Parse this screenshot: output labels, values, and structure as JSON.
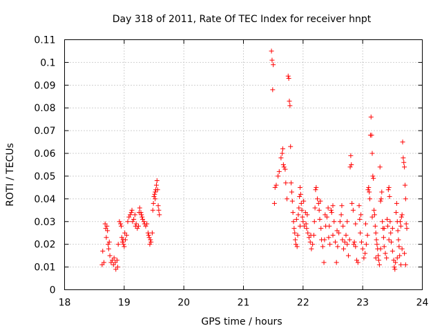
{
  "chart_data": {
    "type": "scatter",
    "title": "Day 318 of 2011, Rate Of TEC Index for receiver hnpt",
    "xlabel": "GPS time / hours",
    "ylabel": "ROTI / TECUs",
    "xlim": [
      18,
      24
    ],
    "ylim": [
      0,
      0.11
    ],
    "x_ticks": [
      "18",
      "19",
      "20",
      "21",
      "22",
      "23",
      "24"
    ],
    "y_ticks": [
      "0",
      "0.01",
      "0.02",
      "0.03",
      "0.04",
      "0.05",
      "0.06",
      "0.07",
      "0.08",
      "0.09",
      "0.1",
      "0.11"
    ],
    "grid": true,
    "legend": "none",
    "marker": "plus",
    "color": "#ff0000",
    "series": [
      {
        "points": [
          [
            18.63,
            0.011
          ],
          [
            18.64,
            0.017
          ],
          [
            18.66,
            0.012
          ],
          [
            18.68,
            0.029
          ],
          [
            18.69,
            0.027
          ],
          [
            18.7,
            0.023
          ],
          [
            18.71,
            0.028
          ],
          [
            18.72,
            0.026
          ],
          [
            18.73,
            0.02
          ],
          [
            18.74,
            0.018
          ],
          [
            18.75,
            0.021
          ],
          [
            18.76,
            0.015
          ],
          [
            18.78,
            0.012
          ],
          [
            18.8,
            0.013
          ],
          [
            18.82,
            0.011
          ],
          [
            18.83,
            0.014
          ],
          [
            18.85,
            0.012
          ],
          [
            18.86,
            0.009
          ],
          [
            18.88,
            0.013
          ],
          [
            18.89,
            0.01
          ],
          [
            18.9,
            0.02
          ],
          [
            18.92,
            0.03
          ],
          [
            18.94,
            0.029
          ],
          [
            18.95,
            0.028
          ],
          [
            18.96,
            0.023
          ],
          [
            18.97,
            0.021
          ],
          [
            18.98,
            0.022
          ],
          [
            18.99,
            0.02
          ],
          [
            19.0,
            0.019
          ],
          [
            19.01,
            0.025
          ],
          [
            19.02,
            0.022
          ],
          [
            19.04,
            0.024
          ],
          [
            19.06,
            0.03
          ],
          [
            19.08,
            0.032
          ],
          [
            19.1,
            0.033
          ],
          [
            19.12,
            0.034
          ],
          [
            19.13,
            0.035
          ],
          [
            19.14,
            0.03
          ],
          [
            19.16,
            0.031
          ],
          [
            19.18,
            0.033
          ],
          [
            19.19,
            0.028
          ],
          [
            19.2,
            0.029
          ],
          [
            19.22,
            0.027
          ],
          [
            19.24,
            0.028
          ],
          [
            19.25,
            0.034
          ],
          [
            19.26,
            0.036
          ],
          [
            19.28,
            0.034
          ],
          [
            19.29,
            0.033
          ],
          [
            19.3,
            0.032
          ],
          [
            19.31,
            0.031
          ],
          [
            19.33,
            0.03
          ],
          [
            19.34,
            0.029
          ],
          [
            19.36,
            0.028
          ],
          [
            19.38,
            0.029
          ],
          [
            19.4,
            0.025
          ],
          [
            19.41,
            0.024
          ],
          [
            19.42,
            0.023
          ],
          [
            19.43,
            0.02
          ],
          [
            19.44,
            0.022
          ],
          [
            19.45,
            0.021
          ],
          [
            19.47,
            0.025
          ],
          [
            19.48,
            0.035
          ],
          [
            19.49,
            0.038
          ],
          [
            19.5,
            0.041
          ],
          [
            19.51,
            0.042
          ],
          [
            19.52,
            0.043
          ],
          [
            19.53,
            0.044
          ],
          [
            19.54,
            0.046
          ],
          [
            19.55,
            0.048
          ],
          [
            19.56,
            0.044
          ],
          [
            19.57,
            0.037
          ],
          [
            19.58,
            0.035
          ],
          [
            19.59,
            0.033
          ],
          [
            19.52,
            0.04
          ],
          [
            21.47,
            0.105
          ],
          [
            21.48,
            0.101
          ],
          [
            21.5,
            0.099
          ],
          [
            21.49,
            0.088
          ],
          [
            21.52,
            0.038
          ],
          [
            21.53,
            0.045
          ],
          [
            21.55,
            0.046
          ],
          [
            21.58,
            0.05
          ],
          [
            21.6,
            0.052
          ],
          [
            21.63,
            0.058
          ],
          [
            21.65,
            0.06
          ],
          [
            21.66,
            0.062
          ],
          [
            21.67,
            0.055
          ],
          [
            21.68,
            0.054
          ],
          [
            21.7,
            0.053
          ],
          [
            21.71,
            0.047
          ],
          [
            21.73,
            0.04
          ],
          [
            21.75,
            0.094
          ],
          [
            21.76,
            0.093
          ],
          [
            21.77,
            0.083
          ],
          [
            21.78,
            0.081
          ],
          [
            21.79,
            0.063
          ],
          [
            21.8,
            0.047
          ],
          [
            21.81,
            0.043
          ],
          [
            21.82,
            0.039
          ],
          [
            21.83,
            0.034
          ],
          [
            21.84,
            0.03
          ],
          [
            21.85,
            0.027
          ],
          [
            21.86,
            0.025
          ],
          [
            21.87,
            0.022
          ],
          [
            21.88,
            0.02
          ],
          [
            21.9,
            0.019
          ],
          [
            21.91,
            0.024
          ],
          [
            21.92,
            0.033
          ],
          [
            21.93,
            0.036
          ],
          [
            21.94,
            0.041
          ],
          [
            21.95,
            0.045
          ],
          [
            21.96,
            0.042
          ],
          [
            21.97,
            0.038
          ],
          [
            21.98,
            0.035
          ],
          [
            21.99,
            0.032
          ],
          [
            22.0,
            0.03
          ],
          [
            22.02,
            0.028
          ],
          [
            22.04,
            0.034
          ],
          [
            22.05,
            0.029
          ],
          [
            22.06,
            0.027
          ],
          [
            22.08,
            0.025
          ],
          [
            22.1,
            0.023
          ],
          [
            22.12,
            0.021
          ],
          [
            22.14,
            0.018
          ],
          [
            22.16,
            0.02
          ],
          [
            22.18,
            0.024
          ],
          [
            22.19,
            0.03
          ],
          [
            22.2,
            0.036
          ],
          [
            22.22,
            0.045
          ],
          [
            22.24,
            0.04
          ],
          [
            22.26,
            0.038
          ],
          [
            22.27,
            0.035
          ],
          [
            22.28,
            0.031
          ],
          [
            22.3,
            0.027
          ],
          [
            22.31,
            0.022
          ],
          [
            22.33,
            0.019
          ],
          [
            22.35,
            0.012
          ],
          [
            22.36,
            0.022
          ],
          [
            22.38,
            0.028
          ],
          [
            22.4,
            0.032
          ],
          [
            22.42,
            0.036
          ],
          [
            22.43,
            0.023
          ],
          [
            22.45,
            0.02
          ],
          [
            22.47,
            0.035
          ],
          [
            22.48,
            0.034
          ],
          [
            22.5,
            0.037
          ],
          [
            22.52,
            0.03
          ],
          [
            22.54,
            0.021
          ],
          [
            22.56,
            0.012
          ],
          [
            22.58,
            0.019
          ],
          [
            22.6,
            0.025
          ],
          [
            22.62,
            0.03
          ],
          [
            22.64,
            0.033
          ],
          [
            22.65,
            0.037
          ],
          [
            22.67,
            0.028
          ],
          [
            22.68,
            0.018
          ],
          [
            22.7,
            0.021
          ],
          [
            22.72,
            0.024
          ],
          [
            22.74,
            0.02
          ],
          [
            22.76,
            0.015
          ],
          [
            22.78,
            0.022
          ],
          [
            22.79,
            0.054
          ],
          [
            22.8,
            0.059
          ],
          [
            22.81,
            0.055
          ],
          [
            22.82,
            0.038
          ],
          [
            22.84,
            0.035
          ],
          [
            22.85,
            0.02
          ],
          [
            22.86,
            0.021
          ],
          [
            22.88,
            0.019
          ],
          [
            22.9,
            0.013
          ],
          [
            22.92,
            0.012
          ],
          [
            22.94,
            0.037
          ],
          [
            22.95,
            0.031
          ],
          [
            22.96,
            0.025
          ],
          [
            22.98,
            0.021
          ],
          [
            23.0,
            0.018
          ],
          [
            23.02,
            0.014
          ],
          [
            23.04,
            0.016
          ],
          [
            23.06,
            0.02
          ],
          [
            23.08,
            0.024
          ],
          [
            23.09,
            0.044
          ],
          [
            23.1,
            0.045
          ],
          [
            23.11,
            0.043
          ],
          [
            23.12,
            0.04
          ],
          [
            23.13,
            0.068
          ],
          [
            23.14,
            0.076
          ],
          [
            23.15,
            0.068
          ],
          [
            23.16,
            0.06
          ],
          [
            23.17,
            0.05
          ],
          [
            23.18,
            0.049
          ],
          [
            23.19,
            0.035
          ],
          [
            23.2,
            0.033
          ],
          [
            23.21,
            0.028
          ],
          [
            23.22,
            0.025
          ],
          [
            23.23,
            0.022
          ],
          [
            23.24,
            0.02
          ],
          [
            23.25,
            0.018
          ],
          [
            23.26,
            0.015
          ],
          [
            23.27,
            0.013
          ],
          [
            23.28,
            0.011
          ],
          [
            23.29,
            0.054
          ],
          [
            23.3,
            0.039
          ],
          [
            23.31,
            0.04
          ],
          [
            23.32,
            0.043
          ],
          [
            23.33,
            0.03
          ],
          [
            23.34,
            0.027
          ],
          [
            23.35,
            0.023
          ],
          [
            23.36,
            0.019
          ],
          [
            23.38,
            0.016
          ],
          [
            23.4,
            0.014
          ],
          [
            23.41,
            0.031
          ],
          [
            23.42,
            0.028
          ],
          [
            23.43,
            0.044
          ],
          [
            23.44,
            0.045
          ],
          [
            23.45,
            0.041
          ],
          [
            23.46,
            0.03
          ],
          [
            23.47,
            0.025
          ],
          [
            23.48,
            0.021
          ],
          [
            23.5,
            0.017
          ],
          [
            23.52,
            0.013
          ],
          [
            23.53,
            0.01
          ],
          [
            23.54,
            0.009
          ],
          [
            23.55,
            0.012
          ],
          [
            23.56,
            0.034
          ],
          [
            23.57,
            0.038
          ],
          [
            23.58,
            0.03
          ],
          [
            23.59,
            0.026
          ],
          [
            23.6,
            0.022
          ],
          [
            23.61,
            0.019
          ],
          [
            23.62,
            0.015
          ],
          [
            23.63,
            0.03
          ],
          [
            23.64,
            0.028
          ],
          [
            23.65,
            0.032
          ],
          [
            23.66,
            0.033
          ],
          [
            23.67,
            0.065
          ],
          [
            23.68,
            0.058
          ],
          [
            23.69,
            0.056
          ],
          [
            23.7,
            0.054
          ],
          [
            23.71,
            0.046
          ],
          [
            23.72,
            0.04
          ],
          [
            23.73,
            0.029
          ],
          [
            23.74,
            0.027
          ],
          [
            23.7,
            0.016
          ],
          [
            23.72,
            0.011
          ],
          [
            23.66,
            0.018
          ],
          [
            23.64,
            0.011
          ],
          [
            23.58,
            0.014
          ],
          [
            23.5,
            0.027
          ],
          [
            23.44,
            0.022
          ],
          [
            23.36,
            0.027
          ],
          [
            23.3,
            0.018
          ],
          [
            23.22,
            0.014
          ],
          [
            23.16,
            0.032
          ],
          [
            23.05,
            0.029
          ],
          [
            22.97,
            0.033
          ],
          [
            22.88,
            0.029
          ],
          [
            22.74,
            0.03
          ],
          [
            22.66,
            0.022
          ],
          [
            22.57,
            0.026
          ],
          [
            22.5,
            0.024
          ],
          [
            22.44,
            0.028
          ],
          [
            22.37,
            0.033
          ],
          [
            22.29,
            0.039
          ],
          [
            22.21,
            0.044
          ],
          [
            22.13,
            0.024
          ],
          [
            22.07,
            0.033
          ],
          [
            22.01,
            0.039
          ],
          [
            21.95,
            0.028
          ],
          [
            21.89,
            0.031
          ]
        ]
      }
    ]
  }
}
